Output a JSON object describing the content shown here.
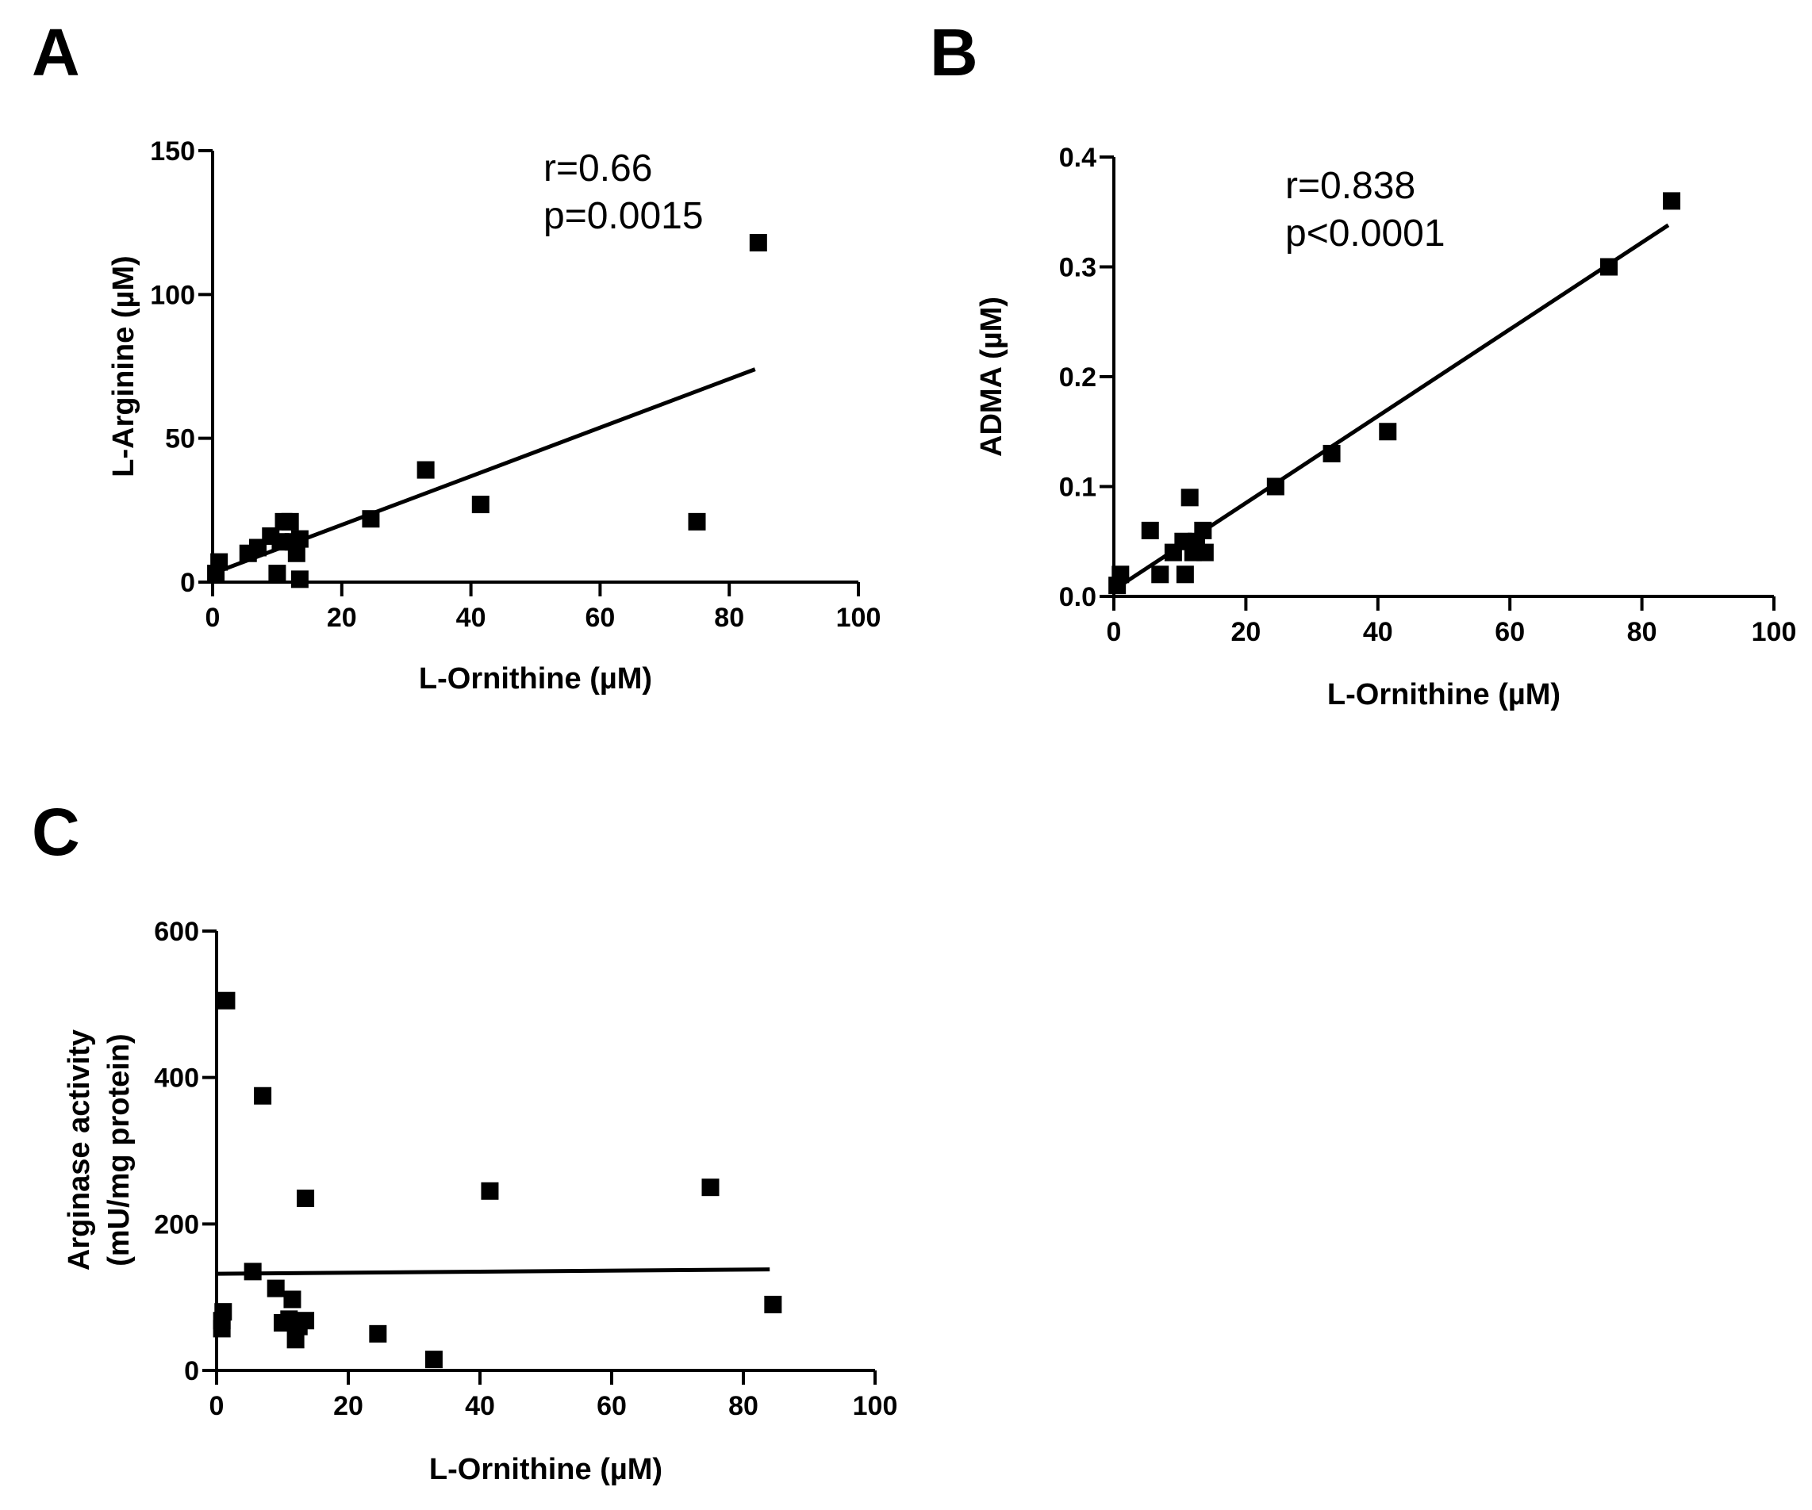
{
  "chart_data": [
    {
      "panel": "A",
      "type": "scatter",
      "title": "",
      "xlabel": "L-Ornithine (µM)",
      "ylabel": "L-Arginine (µM)",
      "xlim": [
        0,
        100
      ],
      "ylim": [
        0,
        150
      ],
      "xticks": [
        0,
        20,
        40,
        60,
        80,
        100
      ],
      "yticks": [
        0,
        50,
        100,
        150
      ],
      "xtick_labels": [
        "0",
        "20",
        "40",
        "60",
        "80",
        "100"
      ],
      "ytick_labels": [
        "0",
        "50",
        "100",
        "150"
      ],
      "annotations": [
        "r=0.66",
        "p=0.0015"
      ],
      "points": [
        {
          "x": 0.5,
          "y": 3
        },
        {
          "x": 1,
          "y": 7
        },
        {
          "x": 5.5,
          "y": 10
        },
        {
          "x": 7,
          "y": 12
        },
        {
          "x": 9,
          "y": 16
        },
        {
          "x": 10,
          "y": 3
        },
        {
          "x": 10.5,
          "y": 14
        },
        {
          "x": 11,
          "y": 21
        },
        {
          "x": 12,
          "y": 21
        },
        {
          "x": 12.5,
          "y": 14
        },
        {
          "x": 13,
          "y": 10
        },
        {
          "x": 13.5,
          "y": 15
        },
        {
          "x": 13.5,
          "y": 1
        },
        {
          "x": 24.5,
          "y": 22
        },
        {
          "x": 33,
          "y": 39
        },
        {
          "x": 41.5,
          "y": 27
        },
        {
          "x": 75,
          "y": 21
        },
        {
          "x": 84.5,
          "y": 118
        }
      ],
      "fit": {
        "x": [
          0,
          84
        ],
        "y": [
          3,
          74
        ]
      }
    },
    {
      "panel": "B",
      "type": "scatter",
      "title": "",
      "xlabel": "L-Ornithine (µM)",
      "ylabel": "ADMA (µM)",
      "xlim": [
        0,
        100
      ],
      "ylim": [
        0,
        0.4
      ],
      "xticks": [
        0,
        20,
        40,
        60,
        80,
        100
      ],
      "yticks": [
        0,
        0.1,
        0.2,
        0.3,
        0.4
      ],
      "xtick_labels": [
        "0",
        "20",
        "40",
        "60",
        "80",
        "100"
      ],
      "ytick_labels": [
        "0.0",
        "0.1",
        "0.2",
        "0.3",
        "0.4"
      ],
      "annotations": [
        "r=0.838",
        "p<0.0001"
      ],
      "points": [
        {
          "x": 0.5,
          "y": 0.01
        },
        {
          "x": 1,
          "y": 0.02
        },
        {
          "x": 5.5,
          "y": 0.06
        },
        {
          "x": 7,
          "y": 0.02
        },
        {
          "x": 9,
          "y": 0.04
        },
        {
          "x": 10.5,
          "y": 0.05
        },
        {
          "x": 10.8,
          "y": 0.02
        },
        {
          "x": 11.5,
          "y": 0.09
        },
        {
          "x": 12,
          "y": 0.04
        },
        {
          "x": 12.5,
          "y": 0.05
        },
        {
          "x": 13.5,
          "y": 0.06
        },
        {
          "x": 13.8,
          "y": 0.04
        },
        {
          "x": 24.5,
          "y": 0.1
        },
        {
          "x": 33,
          "y": 0.13
        },
        {
          "x": 41.5,
          "y": 0.15
        },
        {
          "x": 75,
          "y": 0.3
        },
        {
          "x": 84.5,
          "y": 0.36
        }
      ],
      "fit": {
        "x": [
          0,
          84
        ],
        "y": [
          0.006,
          0.338
        ]
      }
    },
    {
      "panel": "C",
      "type": "scatter",
      "title": "",
      "xlabel": "L-Ornithine (µM)",
      "ylabel": "Arginase activity (mU/mg protein)",
      "ylabel_lines": [
        "Arginase activity",
        "(mU/mg protein)"
      ],
      "xlim": [
        0,
        100
      ],
      "ylim": [
        0,
        600
      ],
      "xticks": [
        0,
        20,
        40,
        60,
        80,
        100
      ],
      "yticks": [
        0,
        200,
        400,
        600
      ],
      "xtick_labels": [
        "0",
        "20",
        "40",
        "60",
        "80",
        "100"
      ],
      "ytick_labels": [
        "0",
        "200",
        "400",
        "600"
      ],
      "annotations": [],
      "points": [
        {
          "x": 0.8,
          "y": 57
        },
        {
          "x": 0.8,
          "y": 68
        },
        {
          "x": 1,
          "y": 80
        },
        {
          "x": 1.5,
          "y": 505
        },
        {
          "x": 5.5,
          "y": 135
        },
        {
          "x": 7,
          "y": 375
        },
        {
          "x": 9,
          "y": 112
        },
        {
          "x": 10,
          "y": 65
        },
        {
          "x": 11,
          "y": 70
        },
        {
          "x": 11.5,
          "y": 97
        },
        {
          "x": 12,
          "y": 42
        },
        {
          "x": 12.5,
          "y": 60
        },
        {
          "x": 13.5,
          "y": 68
        },
        {
          "x": 13.5,
          "y": 235
        },
        {
          "x": 24.5,
          "y": 50
        },
        {
          "x": 33,
          "y": 15
        },
        {
          "x": 41.5,
          "y": 245
        },
        {
          "x": 75,
          "y": 250
        },
        {
          "x": 84.5,
          "y": 90
        }
      ],
      "fit": {
        "x": [
          0,
          84
        ],
        "y": [
          132,
          138
        ]
      }
    }
  ]
}
